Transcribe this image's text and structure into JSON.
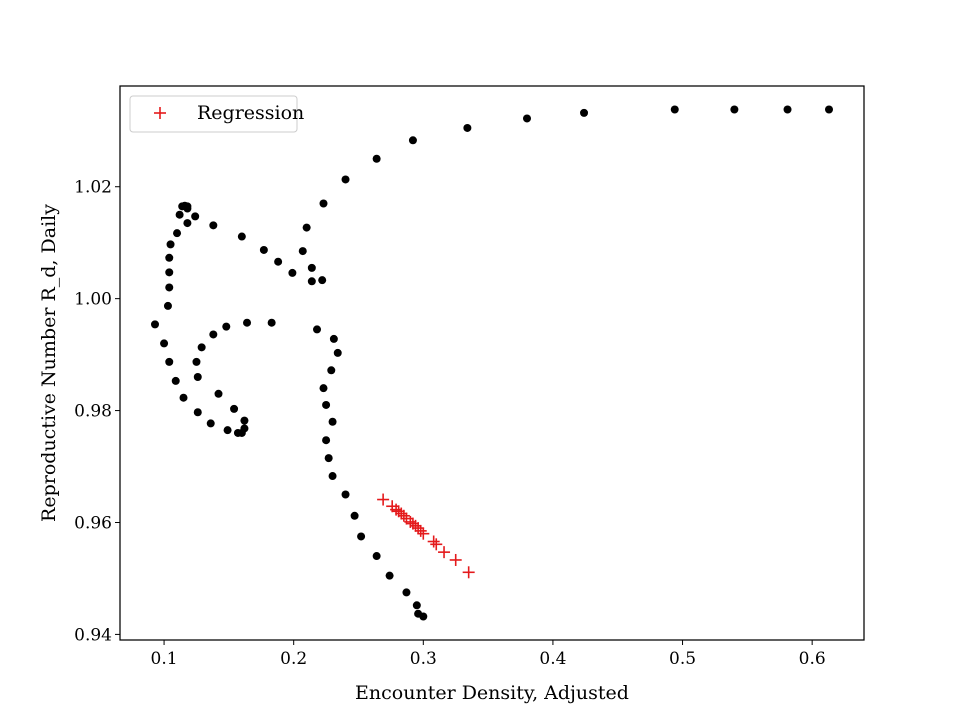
{
  "chart_data": {
    "type": "scatter",
    "title": "",
    "xlabel": "Encounter Density, Adjusted",
    "ylabel": "Reproductive Number R_d, Daily",
    "xlim": [
      0.066,
      0.64
    ],
    "ylim": [
      0.939,
      1.038
    ],
    "xticks": [
      0.1,
      0.2,
      0.3,
      0.4,
      0.5,
      0.6
    ],
    "xtick_labels": [
      "0.1",
      "0.2",
      "0.3",
      "0.4",
      "0.5",
      "0.6"
    ],
    "yticks": [
      0.94,
      0.96,
      0.98,
      1.0,
      1.02
    ],
    "ytick_labels": [
      "0.94",
      "0.96",
      "0.98",
      "1.00",
      "1.02"
    ],
    "grid": false,
    "legend": {
      "position": "upper-left"
    },
    "colors": {
      "data": "#000000",
      "regression": "#e41a1c"
    },
    "series": [
      {
        "marker": "dot",
        "color": "#000000",
        "points": [
          [
            0.613,
            1.0338
          ],
          [
            0.581,
            1.0338
          ],
          [
            0.54,
            1.0338
          ],
          [
            0.494,
            1.0338
          ],
          [
            0.424,
            1.0332
          ],
          [
            0.38,
            1.0322
          ],
          [
            0.334,
            1.0305
          ],
          [
            0.292,
            1.0283
          ],
          [
            0.264,
            1.025
          ],
          [
            0.24,
            1.0213
          ],
          [
            0.223,
            1.017
          ],
          [
            0.21,
            1.0127
          ],
          [
            0.207,
            1.0085
          ],
          [
            0.214,
            1.0055
          ],
          [
            0.222,
            1.0033
          ],
          [
            0.214,
            1.0031
          ],
          [
            0.199,
            1.0046
          ],
          [
            0.188,
            1.0066
          ],
          [
            0.177,
            1.0087
          ],
          [
            0.16,
            1.0111
          ],
          [
            0.138,
            1.0131
          ],
          [
            0.124,
            1.0147
          ],
          [
            0.118,
            1.0161
          ],
          [
            0.116,
            1.0166
          ],
          [
            0.118,
            1.0165
          ],
          [
            0.114,
            1.0165
          ],
          [
            0.112,
            1.015
          ],
          [
            0.118,
            1.0135
          ],
          [
            0.11,
            1.0117
          ],
          [
            0.105,
            1.0097
          ],
          [
            0.104,
            1.0073
          ],
          [
            0.104,
            1.0047
          ],
          [
            0.104,
            1.002
          ],
          [
            0.103,
            0.9987
          ],
          [
            0.093,
            0.9954
          ],
          [
            0.1,
            0.992
          ],
          [
            0.104,
            0.9887
          ],
          [
            0.109,
            0.9853
          ],
          [
            0.115,
            0.9823
          ],
          [
            0.126,
            0.9797
          ],
          [
            0.136,
            0.9777
          ],
          [
            0.149,
            0.9765
          ],
          [
            0.157,
            0.976
          ],
          [
            0.16,
            0.976
          ],
          [
            0.162,
            0.9768
          ],
          [
            0.162,
            0.9782
          ],
          [
            0.154,
            0.9803
          ],
          [
            0.142,
            0.983
          ],
          [
            0.126,
            0.986
          ],
          [
            0.125,
            0.9887
          ],
          [
            0.129,
            0.9913
          ],
          [
            0.138,
            0.9936
          ],
          [
            0.148,
            0.995
          ],
          [
            0.164,
            0.9957
          ],
          [
            0.183,
            0.9957
          ],
          [
            0.218,
            0.9945
          ],
          [
            0.231,
            0.9928
          ],
          [
            0.234,
            0.9903
          ],
          [
            0.229,
            0.9872
          ],
          [
            0.223,
            0.984
          ],
          [
            0.225,
            0.981
          ],
          [
            0.23,
            0.978
          ],
          [
            0.225,
            0.9747
          ],
          [
            0.227,
            0.9715
          ],
          [
            0.23,
            0.9683
          ],
          [
            0.24,
            0.965
          ],
          [
            0.247,
            0.9612
          ],
          [
            0.252,
            0.9575
          ],
          [
            0.264,
            0.954
          ],
          [
            0.274,
            0.9505
          ],
          [
            0.287,
            0.9475
          ],
          [
            0.295,
            0.9452
          ],
          [
            0.296,
            0.9437
          ],
          [
            0.3,
            0.9432
          ]
        ]
      },
      {
        "name": "Regression",
        "marker": "plus",
        "color": "#e41a1c",
        "points": [
          [
            0.269,
            0.9641
          ],
          [
            0.276,
            0.9629
          ],
          [
            0.279,
            0.9623
          ],
          [
            0.281,
            0.962
          ],
          [
            0.283,
            0.9616
          ],
          [
            0.285,
            0.9612
          ],
          [
            0.287,
            0.9607
          ],
          [
            0.29,
            0.9601
          ],
          [
            0.292,
            0.9598
          ],
          [
            0.294,
            0.9594
          ],
          [
            0.296,
            0.959
          ],
          [
            0.298,
            0.9585
          ],
          [
            0.3,
            0.958
          ],
          [
            0.308,
            0.9566
          ],
          [
            0.31,
            0.9561
          ],
          [
            0.316,
            0.9547
          ],
          [
            0.325,
            0.9533
          ],
          [
            0.335,
            0.9511
          ]
        ]
      }
    ]
  }
}
